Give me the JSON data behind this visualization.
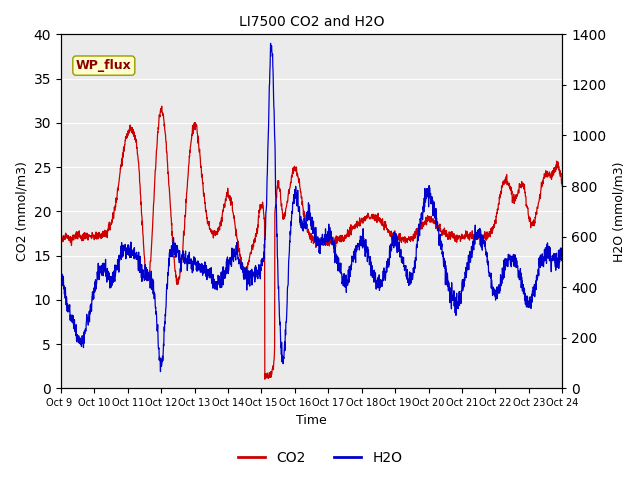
{
  "title": "LI7500 CO2 and H2O",
  "xlabel": "Time",
  "ylabel_left": "CO2 (mmol/m3)",
  "ylabel_right": "H2O (mmol/m3)",
  "ylim_left": [
    0,
    40
  ],
  "ylim_right": [
    0,
    1400
  ],
  "co2_color": "#cc0000",
  "h2o_color": "#0000cc",
  "bg_color": "#ebebeb",
  "fig_bg": "#ffffff",
  "annotation_text": "WP_flux",
  "annotation_bg": "#ffffcc",
  "annotation_border": "#999900",
  "legend_co2": "CO2",
  "legend_h2o": "H2O",
  "xtick_labels": [
    "Oct 9 ",
    "Oct 10",
    "Oct 11",
    "Oct 12",
    "Oct 13",
    "Oct 14",
    "Oct 15",
    "Oct 16",
    "Oct 17",
    "Oct 18",
    "Oct 19",
    "Oct 20",
    "Oct 21",
    "Oct 22",
    "Oct 23",
    "Oct 24"
  ],
  "n_points": 2000
}
